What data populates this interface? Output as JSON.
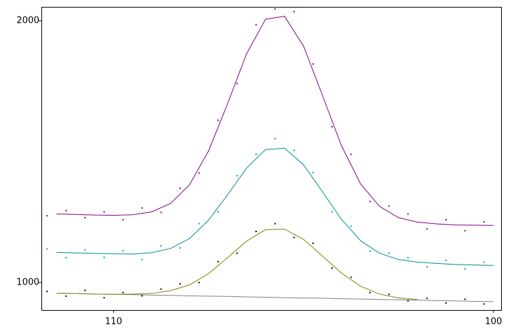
{
  "chart_data": {
    "type": "line",
    "xlim": [
      111.9,
      99.8
    ],
    "ylim": [
      895,
      2053
    ],
    "xticks": [
      110,
      100
    ],
    "yticks": [
      1000,
      2000
    ],
    "x": [
      111.5,
      111,
      110.5,
      110,
      109.5,
      109,
      108.5,
      108,
      107.5,
      107,
      106.5,
      106,
      105.5,
      105,
      104.5,
      104,
      103.5,
      103,
      102.5,
      102,
      101.5,
      101,
      100.5,
      100
    ],
    "series": [
      {
        "color": "#800080",
        "values": [
          1262,
          1260,
          1258,
          1257,
          1259,
          1270,
          1302,
          1374,
          1503,
          1683,
          1874,
          2006,
          2017,
          1903,
          1714,
          1522,
          1377,
          1291,
          1248,
          1231,
          1224,
          1220,
          1219,
          1218
        ]
      },
      {
        "color": "#008b8b",
        "values": [
          1115,
          1113,
          1111,
          1110,
          1109,
          1114,
          1130,
          1168,
          1238,
          1335,
          1437,
          1508,
          1513,
          1450,
          1346,
          1241,
          1160,
          1112,
          1088,
          1078,
          1073,
          1069,
          1067,
          1065
        ]
      },
      {
        "color": "#808080",
        "values": [
          959,
          958,
          956,
          955,
          954,
          952,
          951,
          949,
          948,
          947,
          945,
          944,
          942,
          941,
          940,
          938,
          937,
          935,
          934,
          933,
          931,
          930,
          928,
          927
        ]
      },
      {
        "color": "#808000",
        "values": [
          959,
          958,
          956,
          955,
          956,
          958,
          969,
          991,
          1034,
          1095,
          1158,
          1202,
          1204,
          1165,
          1101,
          1036,
          986,
          956,
          941,
          935,
          null,
          null,
          null,
          null
        ]
      },
      {
        "color": "#800080",
        "marker": "dot",
        "x": [
          111.75,
          111.25,
          110.75,
          110.25,
          109.75,
          109.25,
          108.75,
          108.25,
          107.75,
          107.25,
          106.75,
          106.25,
          105.75,
          105.25,
          104.75,
          104.25,
          103.75,
          103.25,
          102.75,
          102.25,
          101.75,
          101.25,
          100.75,
          100.25
        ],
        "values": [
          1255,
          1275,
          1248,
          1270,
          1240,
          1285,
          1268,
          1360,
          1418,
          1620,
          1760,
          1985,
          2045,
          2035,
          1835,
          1595,
          1490,
          1310,
          1292,
          1262,
          1205,
          1240,
          1198,
          1232
        ]
      },
      {
        "color": "#00a0a0",
        "marker": "dot",
        "x": [
          111.75,
          111.25,
          110.75,
          110.25,
          109.75,
          109.25,
          108.75,
          108.25,
          107.75,
          107.25,
          106.75,
          106.25,
          105.75,
          105.25,
          104.75,
          104.25,
          103.75,
          103.25,
          102.75,
          102.25,
          101.75,
          101.25,
          100.75,
          100.25
        ],
        "values": [
          1128,
          1095,
          1125,
          1096,
          1122,
          1088,
          1140,
          1132,
          1225,
          1270,
          1408,
          1490,
          1550,
          1505,
          1420,
          1270,
          1215,
          1120,
          1112,
          1095,
          1060,
          1085,
          1052,
          1078
        ]
      },
      {
        "color": "#000000",
        "marker": "dot",
        "x": [
          111.75,
          111.25,
          110.75,
          110.25,
          109.75,
          109.25,
          108.75,
          108.25,
          107.75,
          107.25,
          106.75,
          106.25,
          105.75,
          105.25,
          104.75,
          104.25,
          103.75,
          103.25,
          102.75,
          102.25,
          101.75,
          101.25,
          100.75,
          100.25
        ],
        "values": [
          966,
          948,
          970,
          942,
          962,
          949,
          975,
          995,
          1000,
          1080,
          1112,
          1195,
          1225,
          1172,
          1150,
          1055,
          1020,
          962,
          955,
          930,
          940,
          922,
          936,
          918
        ]
      }
    ]
  }
}
